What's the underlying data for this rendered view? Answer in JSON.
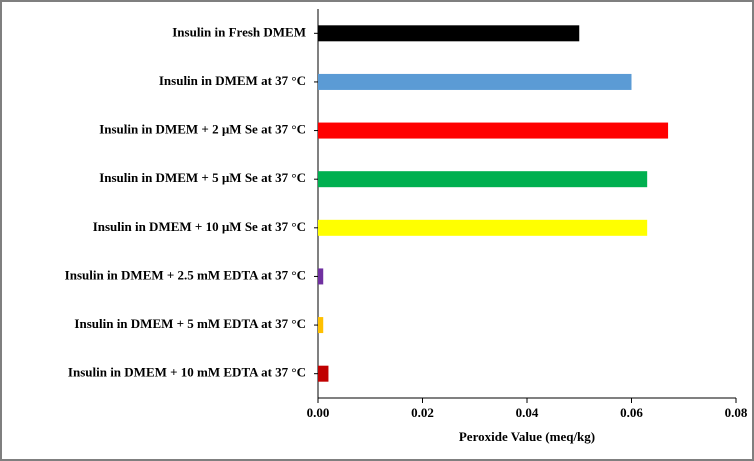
{
  "chart_data": {
    "type": "barh",
    "categories": [
      "Insulin in Fresh DMEM",
      "Insulin in DMEM at 37 °C",
      "Insulin in DMEM + 2 µM Se at 37 °C",
      "Insulin in DMEM + 5 µM Se at 37 °C",
      "Insulin in DMEM + 10 µM Se at 37 °C",
      "Insulin in DMEM + 2.5 mM EDTA at 37 °C",
      "Insulin in DMEM + 5 mM EDTA at 37 °C",
      "Insulin in DMEM + 10 mM EDTA at 37 °C"
    ],
    "values": [
      0.05,
      0.06,
      0.067,
      0.063,
      0.063,
      0.001,
      0.001,
      0.002
    ],
    "colors": [
      "#000000",
      "#5b9bd5",
      "#ff0000",
      "#00b050",
      "#ffff00",
      "#7030a0",
      "#ffc000",
      "#c00000"
    ],
    "xlabel": "Peroxide Value (meq/kg)",
    "xlim": [
      0,
      0.08
    ],
    "xticks": [
      {
        "value": 0,
        "label": "0.00"
      },
      {
        "value": 0.02,
        "label": "0.02"
      },
      {
        "value": 0.04,
        "label": "0.04"
      },
      {
        "value": 0.06,
        "label": "0.06"
      },
      {
        "value": 0.08,
        "label": "0.08"
      }
    ]
  }
}
